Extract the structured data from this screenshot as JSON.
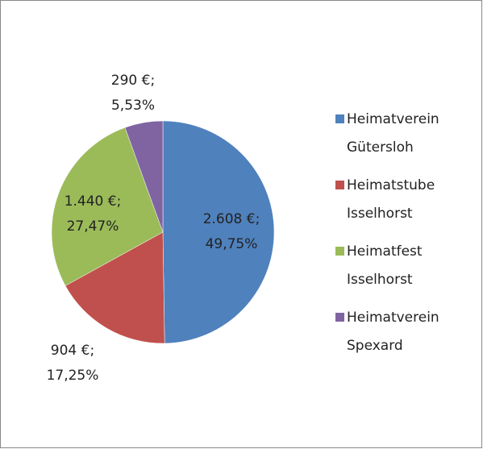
{
  "chart_data": {
    "type": "pie",
    "categories": [
      "Heimatverein Gütersloh",
      "Heimatstube Isselhorst",
      "Heimatfest Isselhorst",
      "Heimatverein Spexard"
    ],
    "values": [
      2608,
      904,
      1440,
      290
    ],
    "value_labels": [
      "2.608 €;",
      "904 €;",
      "1.440 €;",
      "290 €;"
    ],
    "percent_labels": [
      "49,75%",
      "17,25%",
      "27,47%",
      "5,53%"
    ],
    "colors": [
      "#4f81bd",
      "#c0504d",
      "#9bbb59",
      "#8064a2"
    ],
    "legend": "right"
  }
}
